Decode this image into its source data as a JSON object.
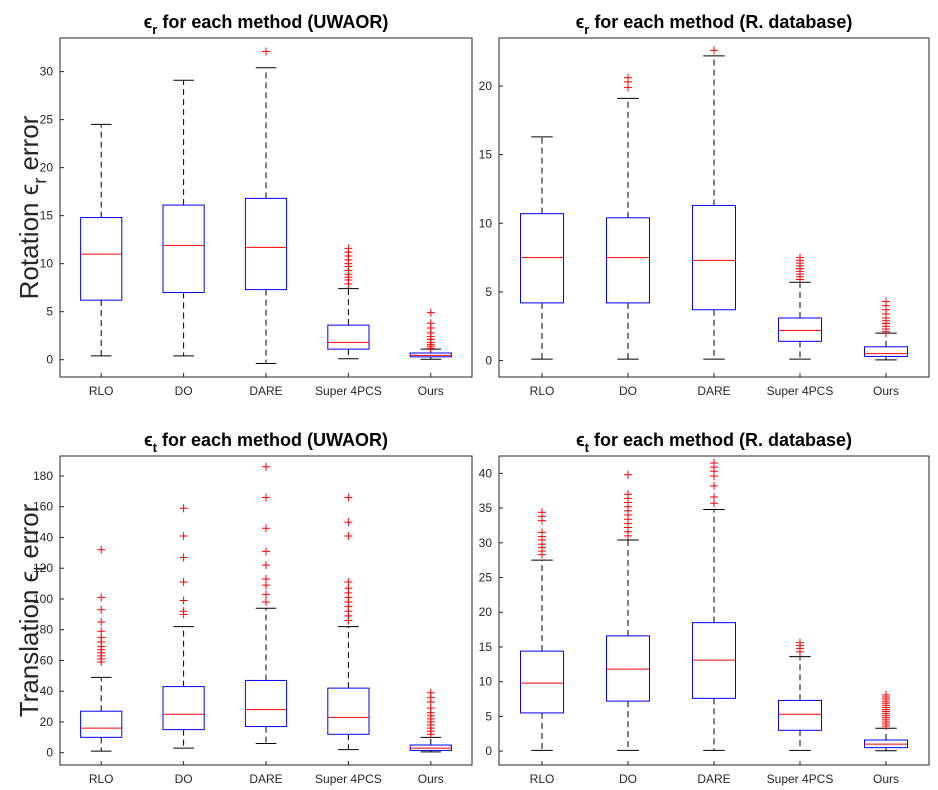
{
  "chart_data": [
    {
      "type": "box",
      "title": {
        "sym": "ϵ",
        "sub": "r",
        "rest": " for each method (UWAOR)"
      },
      "ylabel": {
        "pre": "Rotation ",
        "sym": "ϵ",
        "sub": "r",
        "post": " error"
      },
      "categories": [
        "RLO",
        "DO",
        "DARE",
        "Super 4PCS",
        "Ours"
      ],
      "ylim": [
        -1.8,
        33.5
      ],
      "yticks": [
        0,
        5,
        10,
        15,
        20,
        25,
        30
      ],
      "boxes": [
        {
          "whislo": 0.4,
          "q1": 6.2,
          "med": 11.0,
          "q3": 14.8,
          "whishi": 24.5,
          "fliers": []
        },
        {
          "whislo": 0.4,
          "q1": 7.0,
          "med": 11.9,
          "q3": 16.1,
          "whishi": 29.1,
          "fliers": []
        },
        {
          "whislo": -0.4,
          "q1": 7.3,
          "med": 11.7,
          "q3": 16.8,
          "whishi": 30.4,
          "fliers": [
            32.1
          ]
        },
        {
          "whislo": 0.1,
          "q1": 1.1,
          "med": 1.8,
          "q3": 3.6,
          "whishi": 7.4,
          "fliers": [
            7.9,
            8.3,
            8.6,
            8.9,
            9.3,
            9.7,
            10.0,
            10.4,
            10.8,
            11.2,
            11.6
          ]
        },
        {
          "whislo": 0.05,
          "q1": 0.3,
          "med": 0.45,
          "q3": 0.7,
          "whishi": 1.1,
          "fliers": [
            1.2,
            1.4,
            1.6,
            1.8,
            2.1,
            2.4,
            2.8,
            3.3,
            3.8,
            4.9
          ]
        }
      ]
    },
    {
      "type": "box",
      "title": {
        "sym": "ϵ",
        "sub": "r",
        "rest": " for each method (R. database)"
      },
      "ylabel": null,
      "categories": [
        "RLO",
        "DO",
        "DARE",
        "Super 4PCS",
        "Ours"
      ],
      "ylim": [
        -1.2,
        23.5
      ],
      "yticks": [
        0,
        5,
        10,
        15,
        20
      ],
      "boxes": [
        {
          "whislo": 0.1,
          "q1": 4.2,
          "med": 7.5,
          "q3": 10.7,
          "whishi": 16.3,
          "fliers": []
        },
        {
          "whislo": 0.1,
          "q1": 4.2,
          "med": 7.5,
          "q3": 10.4,
          "whishi": 19.1,
          "fliers": [
            19.9,
            20.3,
            20.6
          ]
        },
        {
          "whislo": 0.1,
          "q1": 3.7,
          "med": 7.3,
          "q3": 11.3,
          "whishi": 22.2,
          "fliers": [
            22.6
          ]
        },
        {
          "whislo": 0.1,
          "q1": 1.4,
          "med": 2.2,
          "q3": 3.1,
          "whishi": 5.7,
          "fliers": [
            5.9,
            6.1,
            6.3,
            6.5,
            6.7,
            6.9,
            7.1,
            7.3,
            7.5
          ]
        },
        {
          "whislo": 0.05,
          "q1": 0.3,
          "med": 0.5,
          "q3": 1.0,
          "whishi": 2.0,
          "fliers": [
            2.1,
            2.3,
            2.5,
            2.7,
            2.9,
            3.1,
            3.4,
            3.7,
            4.0,
            4.3
          ]
        }
      ]
    },
    {
      "type": "box",
      "title": {
        "sym": "ϵ",
        "sub": "t",
        "rest": " for each method (UWAOR)"
      },
      "ylabel": {
        "pre": "Translation ",
        "sym": "ϵ",
        "sub": "t",
        "post": " error"
      },
      "categories": [
        "RLO",
        "DO",
        "DARE",
        "Super 4PCS",
        "Ours"
      ],
      "ylim": [
        -8,
        193
      ],
      "yticks": [
        0,
        20,
        40,
        60,
        80,
        100,
        120,
        140,
        160,
        180
      ],
      "boxes": [
        {
          "whislo": 1,
          "q1": 10,
          "med": 16,
          "q3": 27,
          "whishi": 49,
          "fliers": [
            59,
            61,
            63,
            65,
            67,
            69,
            72,
            75,
            79,
            85,
            93,
            101,
            132
          ]
        },
        {
          "whislo": 3,
          "q1": 15,
          "med": 25,
          "q3": 43,
          "whishi": 82,
          "fliers": [
            90,
            92,
            99,
            111,
            127,
            141,
            159
          ]
        },
        {
          "whislo": 6,
          "q1": 17,
          "med": 28,
          "q3": 47,
          "whishi": 94,
          "fliers": [
            98,
            103,
            109,
            113,
            122,
            131,
            146,
            166,
            186
          ]
        },
        {
          "whislo": 2,
          "q1": 12,
          "med": 23,
          "q3": 42,
          "whishi": 82,
          "fliers": [
            86,
            89,
            92,
            95,
            98,
            101,
            104,
            107,
            111,
            141,
            150,
            166
          ]
        },
        {
          "whislo": 0.5,
          "q1": 1.5,
          "med": 3,
          "q3": 5,
          "whishi": 10,
          "fliers": [
            12,
            14,
            16,
            18,
            20,
            22,
            24,
            26,
            29,
            33,
            36,
            39
          ]
        }
      ]
    },
    {
      "type": "box",
      "title": {
        "sym": "ϵ",
        "sub": "t",
        "rest": " for each method (R. database)"
      },
      "ylabel": null,
      "categories": [
        "RLO",
        "DO",
        "DARE",
        "Super 4PCS",
        "Ours"
      ],
      "ylim": [
        -2,
        42.5
      ],
      "yticks": [
        0,
        5,
        10,
        15,
        20,
        25,
        30,
        35,
        40
      ],
      "boxes": [
        {
          "whislo": 0.1,
          "q1": 5.5,
          "med": 9.8,
          "q3": 14.4,
          "whishi": 27.5,
          "fliers": [
            28.3,
            28.8,
            29.3,
            29.8,
            30.4,
            30.9,
            31.5,
            33.2,
            33.8,
            34.4
          ]
        },
        {
          "whislo": 0.1,
          "q1": 7.2,
          "med": 11.8,
          "q3": 16.6,
          "whishi": 30.4,
          "fliers": [
            31.0,
            31.6,
            32.2,
            32.8,
            33.4,
            34.0,
            34.6,
            35.2,
            35.8,
            36.4,
            37.0,
            39.8
          ]
        },
        {
          "whislo": 0.1,
          "q1": 7.6,
          "med": 13.1,
          "q3": 18.5,
          "whishi": 34.8,
          "fliers": [
            35.7,
            36.6,
            38.2,
            39.6,
            40.3,
            40.9,
            41.5
          ]
        },
        {
          "whislo": 0.1,
          "q1": 3.0,
          "med": 5.3,
          "q3": 7.3,
          "whishi": 13.6,
          "fliers": [
            14.3,
            14.8,
            15.2,
            15.6
          ]
        },
        {
          "whislo": 0.05,
          "q1": 0.5,
          "med": 1.0,
          "q3": 1.6,
          "whishi": 3.3,
          "fliers": [
            3.6,
            3.9,
            4.2,
            4.5,
            4.8,
            5.1,
            5.4,
            5.7,
            6.0,
            6.3,
            6.6,
            6.9,
            7.2,
            7.5,
            7.8,
            8.1
          ]
        }
      ]
    }
  ]
}
